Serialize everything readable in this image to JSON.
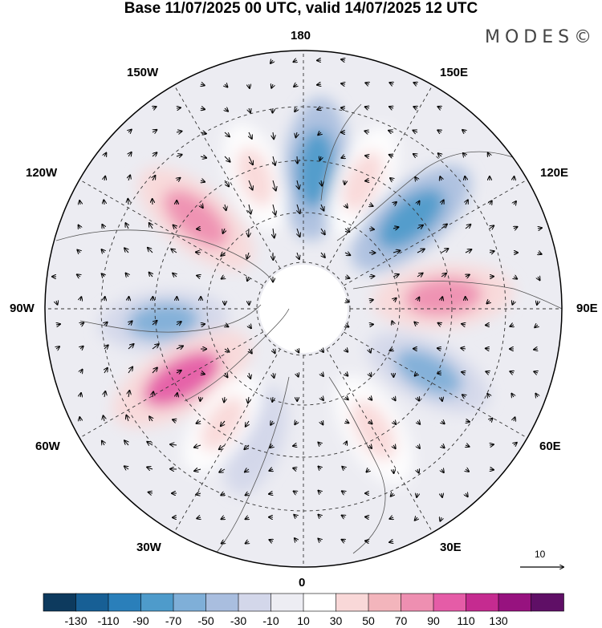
{
  "title": "Base 11/07/2025 00 UTC, valid 14/07/2025 12 UTC",
  "brand": "MODES©",
  "longitude_labels": {
    "top": "180",
    "bottom": "0",
    "left": "90W",
    "right": "90E",
    "upper_left_1": "150W",
    "upper_left_2": "120W",
    "upper_right_1": "150E",
    "upper_right_2": "120E",
    "lower_left_1": "60W",
    "lower_left_2": "30W",
    "lower_right_1": "60E",
    "lower_right_2": "30E"
  },
  "reference_vector": {
    "label": "10"
  },
  "colorbar": {
    "colors": [
      "#0d3a5e",
      "#175f95",
      "#2a7fba",
      "#4e9bcb",
      "#7fafd8",
      "#a9bedf",
      "#d3d7ea",
      "#ededf3",
      "#ffffff",
      "#f9d8d8",
      "#f3b5bc",
      "#ee8fb1",
      "#e55ca7",
      "#c52b90",
      "#97127f",
      "#5f0f66"
    ],
    "labels": [
      "-130",
      "-110",
      "-90",
      "-70",
      "-50",
      "-30",
      "-10",
      "10",
      "30",
      "50",
      "70",
      "90",
      "110",
      "130"
    ]
  },
  "anomaly_centers": [
    {
      "name": "trough-bering",
      "lon": 175,
      "value": -85
    },
    {
      "name": "ridge-dateline-east",
      "lon": 155,
      "value": 40
    },
    {
      "name": "ridge-pacific-north",
      "lon": -160,
      "value": 30
    },
    {
      "name": "ridge-alaska-canada",
      "lon": -130,
      "value": 80
    },
    {
      "name": "trough-hudson",
      "lon": -85,
      "value": -60
    },
    {
      "name": "ridge-labrador",
      "lon": -60,
      "value": 105
    },
    {
      "name": "trough-greenland-sea",
      "lon": -20,
      "value": -30
    },
    {
      "name": "ridge-atlantic",
      "lon": -35,
      "value": 30
    },
    {
      "name": "trough-east-siberia",
      "lon": 130,
      "value": -90
    },
    {
      "name": "ridge-central-siberia",
      "lon": 95,
      "value": 80
    },
    {
      "name": "trough-western-siberia",
      "lon": 63,
      "value": -65
    },
    {
      "name": "ridge-europe",
      "lon": 30,
      "value": 45
    }
  ]
}
